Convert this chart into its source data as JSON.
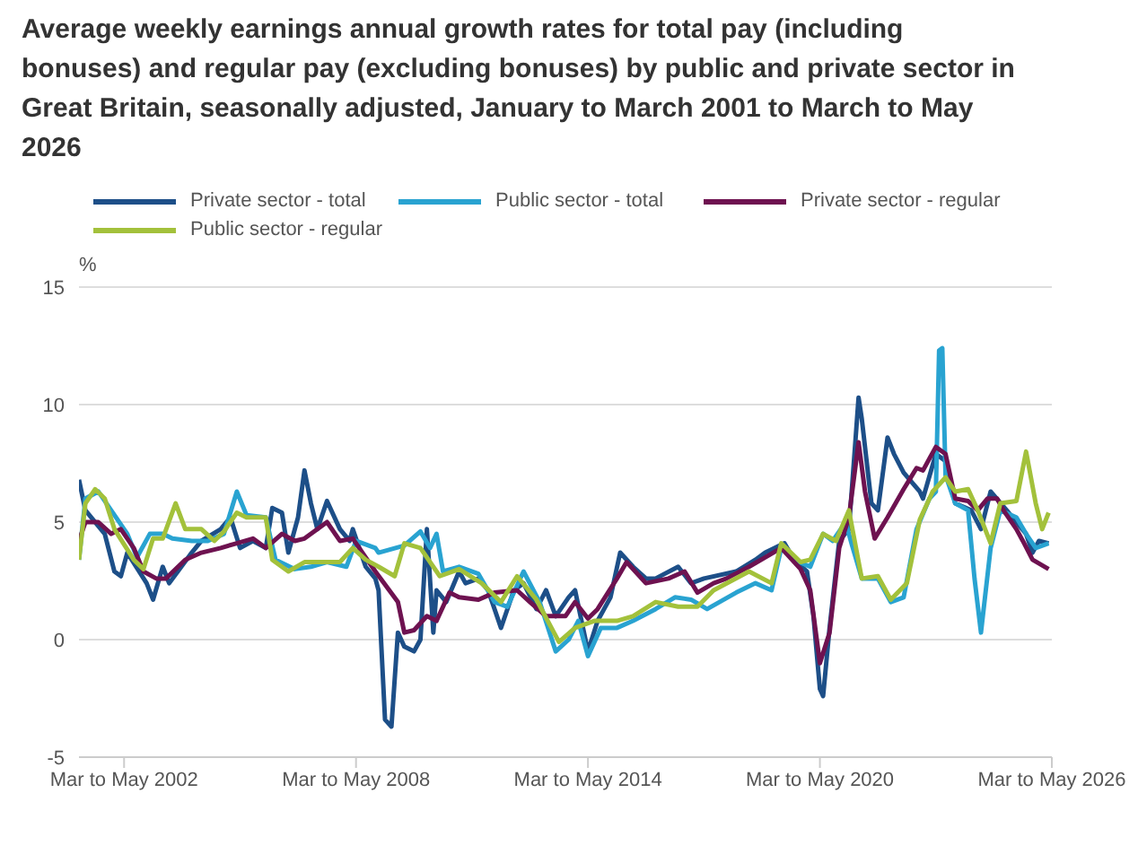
{
  "chart_data": {
    "type": "line",
    "title": "Average weekly earnings annual growth rates for total pay (including bonuses) and regular pay (excluding bonuses) by public and private sector in Great Britain, seasonally adjusted, January to March 2001 to March to May 2026",
    "ylabel": "%",
    "xlim": [
      "2001-02",
      "2026-04"
    ],
    "xticks": [
      {
        "value": "2002-04",
        "label": "Mar to May 2002"
      },
      {
        "value": "2008-04",
        "label": "Mar to May 2008"
      },
      {
        "value": "2014-04",
        "label": "Mar to May 2014"
      },
      {
        "value": "2020-04",
        "label": "Mar to May 2020"
      },
      {
        "value": "2026-04",
        "label": "Mar to May 2026"
      }
    ],
    "ylim": [
      -5,
      15
    ],
    "yticks": [
      -5,
      0,
      5,
      10,
      15
    ],
    "grid": "y",
    "legend": "top",
    "series": [
      {
        "name": "Private sector - total",
        "color": "#1d4f88",
        "x": [
          "2001-02",
          "2001-04",
          "2001-10",
          "2002-01",
          "2002-03",
          "2002-05",
          "2002-11",
          "2003-01",
          "2003-04",
          "2003-06",
          "2004-01",
          "2004-04",
          "2004-10",
          "2005-01",
          "2005-04",
          "2005-08",
          "2005-12",
          "2006-02",
          "2006-05",
          "2006-07",
          "2006-10",
          "2006-12",
          "2007-02",
          "2007-04",
          "2007-07",
          "2007-11",
          "2008-02",
          "2008-03",
          "2008-07",
          "2008-10",
          "2008-11",
          "2009-01",
          "2009-03",
          "2009-05",
          "2009-07",
          "2009-10",
          "2009-12",
          "2010-02",
          "2010-04",
          "2010-05",
          "2010-08",
          "2010-12",
          "2011-02",
          "2011-06",
          "2011-09",
          "2012-01",
          "2012-05",
          "2012-08",
          "2012-12",
          "2013-03",
          "2013-06",
          "2013-10",
          "2013-12",
          "2014-04",
          "2014-07",
          "2014-11",
          "2015-02",
          "2015-06",
          "2015-10",
          "2016-01",
          "2016-08",
          "2016-12",
          "2017-04",
          "2018-02",
          "2018-08",
          "2018-11",
          "2019-05",
          "2019-08",
          "2019-12",
          "2020-02",
          "2020-04",
          "2020-05",
          "2020-07",
          "2020-10",
          "2021-01",
          "2021-03",
          "2021-04",
          "2021-05",
          "2021-08",
          "2021-10",
          "2022-01",
          "2022-03",
          "2022-06",
          "2022-11",
          "2022-12",
          "2023-04",
          "2023-07",
          "2023-10",
          "2024-03",
          "2024-06",
          "2024-09",
          "2025-02",
          "2025-08",
          "2025-10",
          "2025-12",
          "2026-03"
        ],
        "values": [
          6.8,
          5.5,
          4.5,
          2.9,
          2.7,
          3.7,
          2.4,
          1.7,
          3.1,
          2.4,
          3.7,
          4.2,
          4.7,
          5.2,
          3.9,
          4.2,
          3.9,
          5.6,
          5.4,
          3.7,
          5.2,
          7.2,
          5.8,
          4.7,
          5.9,
          4.7,
          4.2,
          4.7,
          3.1,
          2.6,
          2.1,
          -3.4,
          -3.7,
          0.3,
          -0.3,
          -0.5,
          0,
          4.7,
          0.3,
          2.1,
          1.6,
          2.9,
          2.4,
          2.6,
          2.1,
          0.5,
          2.1,
          2.4,
          1.3,
          2.1,
          1.0,
          1.8,
          2.1,
          -0.5,
          0.8,
          1.8,
          3.7,
          3.1,
          2.6,
          2.6,
          3.1,
          2.4,
          2.6,
          2.9,
          3.4,
          3.7,
          4.1,
          3.4,
          2.9,
          1.0,
          -2.1,
          -2.4,
          0.5,
          4.2,
          4.7,
          8.4,
          10.3,
          9.4,
          5.8,
          5.5,
          8.6,
          7.9,
          7.1,
          6.3,
          6.0,
          7.9,
          7.6,
          5.8,
          5.5,
          4.7,
          6.3,
          5.5,
          4.5,
          3.7,
          4.2,
          4.1
        ]
      },
      {
        "name": "Public sector - total",
        "color": "#29a3d1",
        "x": [
          "2001-02",
          "2001-04",
          "2001-08",
          "2001-12",
          "2002-05",
          "2002-08",
          "2002-12",
          "2003-04",
          "2003-07",
          "2004-01",
          "2004-06",
          "2004-11",
          "2005-03",
          "2005-06",
          "2005-12",
          "2006-03",
          "2006-09",
          "2007-02",
          "2007-07",
          "2008-01",
          "2008-04",
          "2008-10",
          "2008-11",
          "2009-07",
          "2009-12",
          "2010-03",
          "2010-05",
          "2010-07",
          "2010-12",
          "2011-06",
          "2011-11",
          "2012-03",
          "2012-08",
          "2013-01",
          "2013-06",
          "2013-10",
          "2014-01",
          "2014-04",
          "2014-08",
          "2015-01",
          "2015-06",
          "2016-01",
          "2016-07",
          "2016-12",
          "2017-05",
          "2018-02",
          "2018-08",
          "2019-01",
          "2019-04",
          "2019-08",
          "2020-01",
          "2020-05",
          "2020-08",
          "2020-12",
          "2021-02",
          "2021-05",
          "2021-10",
          "2022-02",
          "2022-06",
          "2022-10",
          "2023-02",
          "2023-04",
          "2023-05",
          "2023-06",
          "2023-07",
          "2023-10",
          "2024-02",
          "2024-04",
          "2024-06",
          "2024-09",
          "2024-12",
          "2025-05",
          "2025-08",
          "2025-11",
          "2026-03"
        ],
        "values": [
          3.4,
          6.0,
          6.3,
          5.5,
          4.5,
          3.5,
          4.5,
          4.5,
          4.3,
          4.2,
          4.2,
          4.5,
          6.3,
          5.3,
          5.2,
          3.4,
          3.0,
          3.1,
          3.3,
          3.1,
          4.2,
          3.9,
          3.7,
          4.0,
          4.6,
          3.9,
          4.5,
          2.9,
          3.1,
          2.8,
          1.6,
          1.4,
          2.9,
          1.6,
          -0.5,
          0.0,
          0.8,
          -0.7,
          0.5,
          0.5,
          0.8,
          1.3,
          1.8,
          1.7,
          1.3,
          2.0,
          2.4,
          2.1,
          3.9,
          3.4,
          3.1,
          4.5,
          4.2,
          5.0,
          4.0,
          2.6,
          2.6,
          1.6,
          1.8,
          4.7,
          6.0,
          6.3,
          12.3,
          12.4,
          7.0,
          5.8,
          5.5,
          2.6,
          0.3,
          3.9,
          5.5,
          5.2,
          4.5,
          3.9,
          4.1
        ]
      },
      {
        "name": "Private sector - regular",
        "color": "#6e1250",
        "x": [
          "2001-02",
          "2001-04",
          "2001-08",
          "2001-12",
          "2002-03",
          "2002-07",
          "2002-10",
          "2003-02",
          "2003-05",
          "2003-11",
          "2004-04",
          "2004-10",
          "2005-03",
          "2005-08",
          "2005-12",
          "2006-05",
          "2006-09",
          "2006-12",
          "2007-07",
          "2007-11",
          "2008-03",
          "2008-06",
          "2008-10",
          "2009-05",
          "2009-07",
          "2009-10",
          "2010-02",
          "2010-05",
          "2010-09",
          "2010-12",
          "2011-06",
          "2011-11",
          "2012-06",
          "2012-10",
          "2013-03",
          "2013-09",
          "2013-12",
          "2014-04",
          "2014-07",
          "2015-01",
          "2015-04",
          "2015-10",
          "2016-05",
          "2016-10",
          "2017-02",
          "2017-07",
          "2017-11",
          "2018-06",
          "2018-11",
          "2019-04",
          "2019-10",
          "2020-01",
          "2020-04",
          "2020-07",
          "2020-10",
          "2021-01",
          "2021-04",
          "2021-06",
          "2021-09",
          "2022-01",
          "2022-06",
          "2022-10",
          "2022-12",
          "2023-04",
          "2023-07",
          "2023-10",
          "2024-02",
          "2024-05",
          "2024-08",
          "2024-11",
          "2025-01",
          "2025-05",
          "2025-07",
          "2025-10",
          "2026-03"
        ],
        "values": [
          4.2,
          5.0,
          5.0,
          4.5,
          4.7,
          3.9,
          2.9,
          2.6,
          2.6,
          3.4,
          3.7,
          3.9,
          4.1,
          4.3,
          3.9,
          4.5,
          4.2,
          4.3,
          5.0,
          4.2,
          4.3,
          3.7,
          2.9,
          1.6,
          0.3,
          0.4,
          1.0,
          0.8,
          2.0,
          1.8,
          1.7,
          2.0,
          2.1,
          1.6,
          1.0,
          1.0,
          1.6,
          0.9,
          1.3,
          2.6,
          3.3,
          2.4,
          2.6,
          2.9,
          2.0,
          2.4,
          2.6,
          3.1,
          3.5,
          3.9,
          3.0,
          2.1,
          -1.0,
          0.3,
          3.9,
          5.2,
          8.4,
          6.3,
          4.3,
          5.2,
          6.4,
          7.3,
          7.2,
          8.2,
          7.9,
          6.0,
          5.9,
          5.5,
          6.0,
          6.0,
          5.5,
          4.7,
          4.2,
          3.4,
          3.0
        ]
      },
      {
        "name": "Public sector - regular",
        "color": "#a3c13b",
        "x": [
          "2001-02",
          "2001-04",
          "2001-07",
          "2001-10",
          "2002-01",
          "2002-07",
          "2002-10",
          "2003-01",
          "2003-04",
          "2003-08",
          "2003-11",
          "2004-04",
          "2004-08",
          "2004-11",
          "2005-03",
          "2005-06",
          "2005-12",
          "2006-02",
          "2006-07",
          "2006-12",
          "2007-06",
          "2007-11",
          "2008-03",
          "2008-07",
          "2008-11",
          "2009-04",
          "2009-07",
          "2009-12",
          "2010-06",
          "2010-12",
          "2011-07",
          "2012-01",
          "2012-06",
          "2012-12",
          "2013-07",
          "2013-12",
          "2014-06",
          "2015-01",
          "2015-06",
          "2016-01",
          "2016-08",
          "2017-02",
          "2017-07",
          "2018-06",
          "2019-01",
          "2019-04",
          "2019-10",
          "2020-01",
          "2020-05",
          "2020-09",
          "2021-01",
          "2021-05",
          "2021-10",
          "2022-02",
          "2022-07",
          "2022-11",
          "2023-03",
          "2023-07",
          "2023-10",
          "2024-02",
          "2024-05",
          "2024-09",
          "2024-12",
          "2025-05",
          "2025-08",
          "2025-11",
          "2026-01",
          "2026-03"
        ],
        "values": [
          3.4,
          5.8,
          6.4,
          6.0,
          4.7,
          3.4,
          3.0,
          4.3,
          4.3,
          5.8,
          4.7,
          4.7,
          4.2,
          4.6,
          5.4,
          5.2,
          5.2,
          3.4,
          2.9,
          3.3,
          3.3,
          3.3,
          3.9,
          3.4,
          3.1,
          2.7,
          4.1,
          3.9,
          2.7,
          3.0,
          2.4,
          1.6,
          2.7,
          1.7,
          -0.1,
          0.5,
          0.8,
          0.8,
          1.0,
          1.6,
          1.4,
          1.4,
          2.1,
          2.9,
          2.4,
          4.1,
          3.3,
          3.4,
          4.5,
          4.2,
          5.5,
          2.6,
          2.7,
          1.7,
          2.4,
          5.1,
          6.3,
          6.9,
          6.3,
          6.4,
          5.5,
          4.1,
          5.8,
          5.9,
          8.0,
          5.8,
          4.7,
          5.4
        ]
      }
    ]
  }
}
